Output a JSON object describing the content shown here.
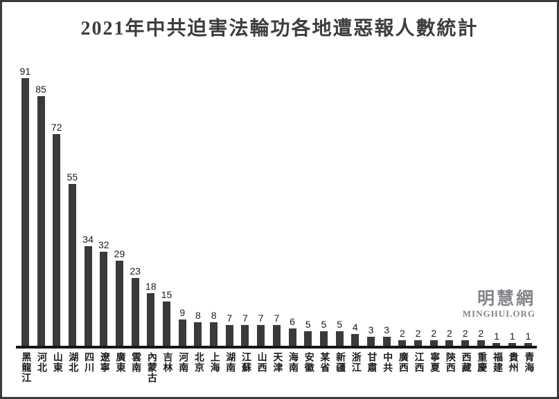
{
  "title": "2021年中共迫害法輪功各地遭惡報人數統計",
  "watermark": {
    "chinese": "明慧網",
    "latin": "MINGHUI.ORG"
  },
  "colors": {
    "bar": "#3a3a3a",
    "axis": "#161616",
    "title_text": "#3d3d3d",
    "label_text": "#1a1a1a",
    "watermark_text": "#84848c",
    "frame_border": "#3a3a3a",
    "background": "#ffffff"
  },
  "chart_data": {
    "type": "bar",
    "title": "2021年中共迫害法輪功各地遭惡報人數統計",
    "categories": [
      "黑龍江",
      "河北",
      "山東",
      "湖北",
      "四川",
      "遼寧",
      "廣東",
      "雲南",
      "內蒙古",
      "吉林",
      "河南",
      "北京",
      "上海",
      "湖南",
      "江蘇",
      "山西",
      "天津",
      "海南",
      "安徽",
      "某省",
      "新疆",
      "浙江",
      "甘肅",
      "中共",
      "廣西",
      "江西",
      "寧夏",
      "陝西",
      "西藏",
      "重慶",
      "福建",
      "貴州",
      "青海"
    ],
    "values": [
      91,
      85,
      72,
      55,
      34,
      32,
      29,
      23,
      18,
      15,
      9,
      8,
      8,
      7,
      7,
      7,
      7,
      6,
      5,
      5,
      5,
      4,
      3,
      3,
      2,
      2,
      2,
      2,
      2,
      2,
      1,
      1,
      1
    ],
    "xlabel": "",
    "ylabel": "",
    "ylim": [
      0,
      95
    ],
    "grid": false,
    "legend": "none",
    "value_labels": true,
    "orientation": "vertical"
  }
}
